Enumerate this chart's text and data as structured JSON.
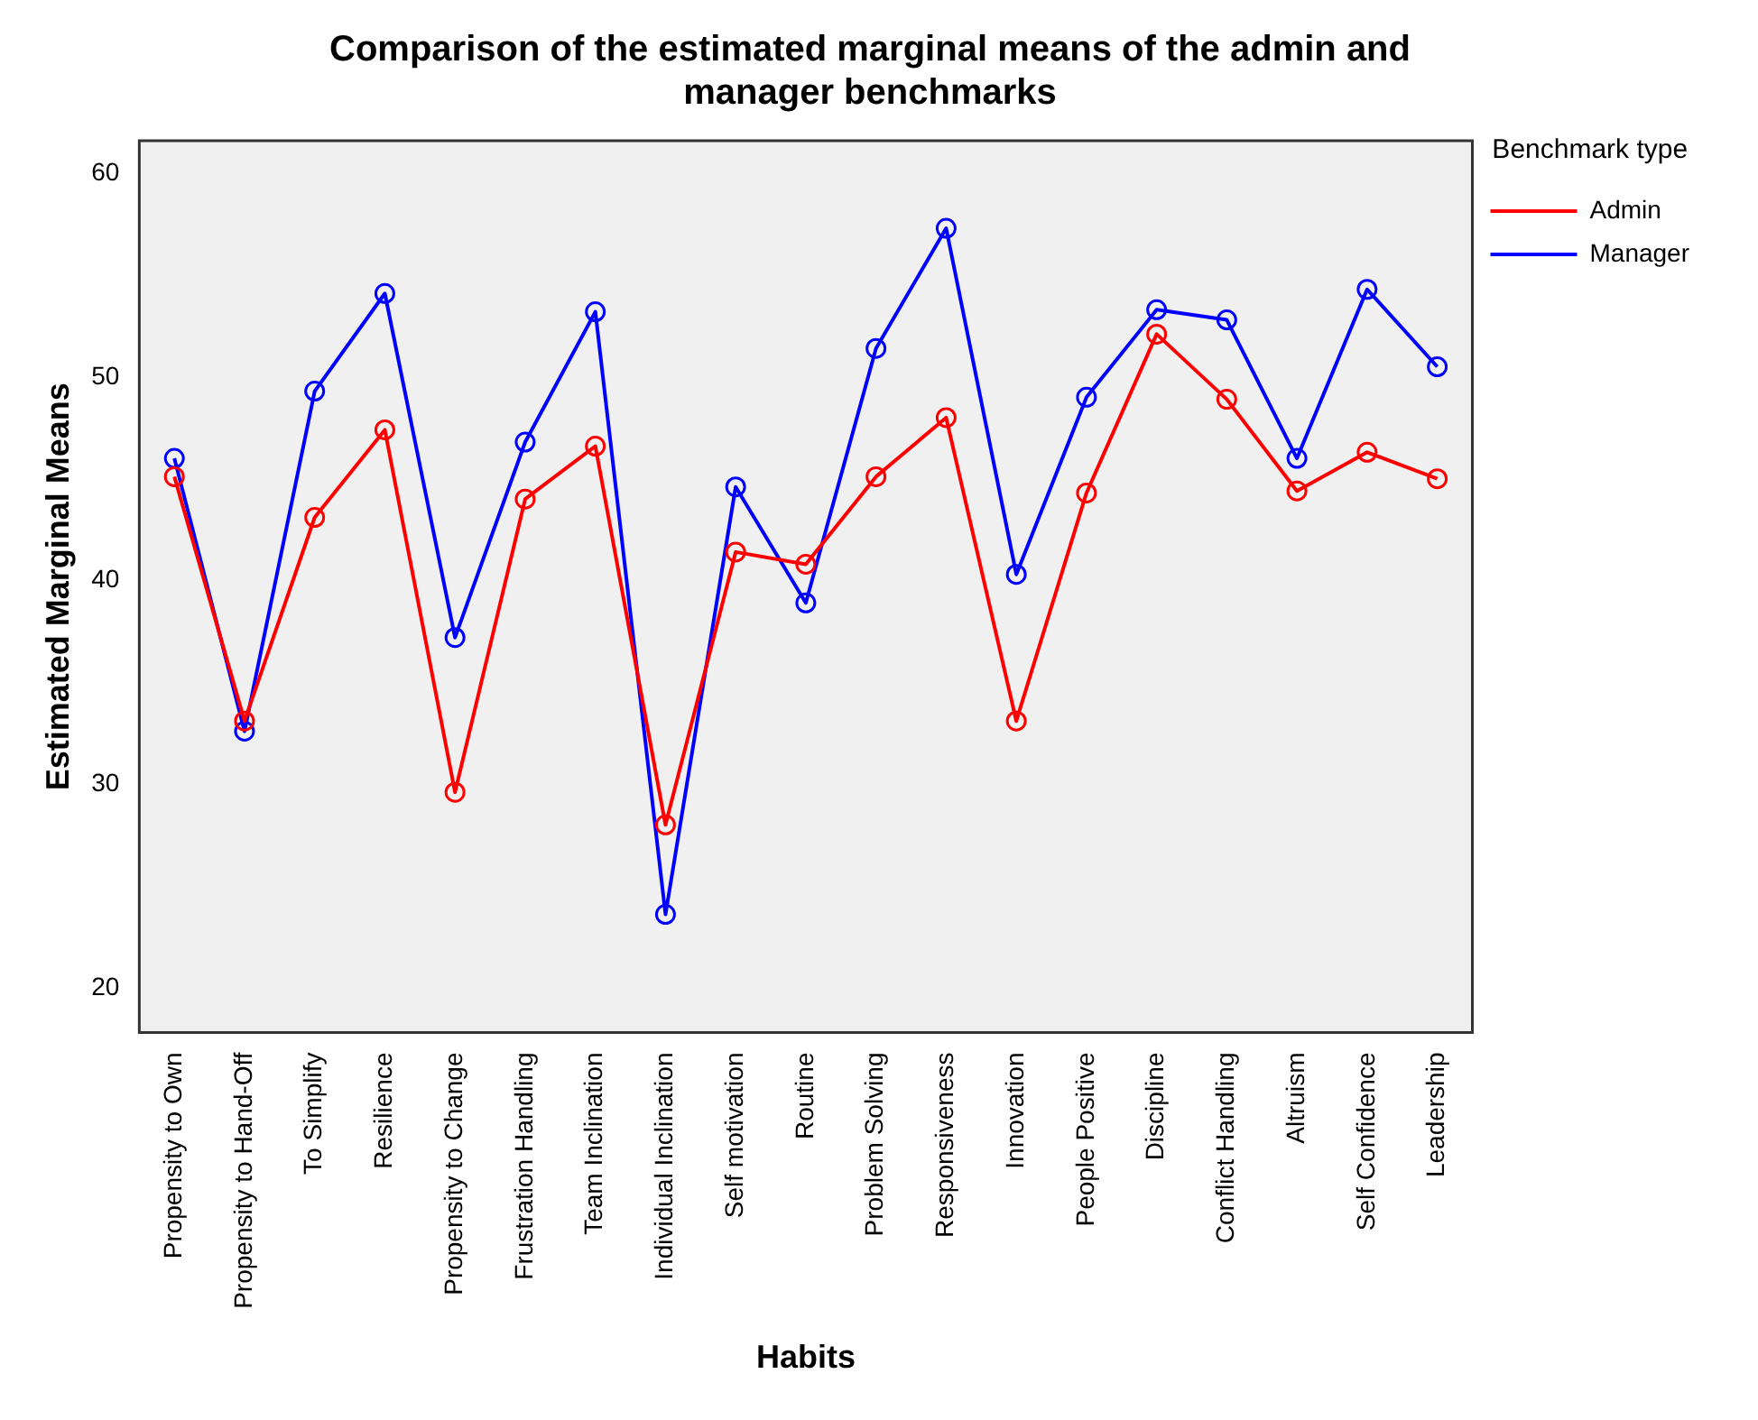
{
  "chart_data": {
    "type": "line",
    "title": "Comparison of the estimated marginal means of the admin and manager benchmarks",
    "xlabel": "Habits",
    "ylabel": "Estimated Marginal Means",
    "legend_title": "Benchmark type",
    "categories": [
      "Propensity to Own",
      "Propensity to Hand-Off",
      "To Simplify",
      "Resilience",
      "Propensity to Change",
      "Frustration Handling",
      "Team Inclination",
      "Individual Inclination",
      "Self motivation",
      "Routine",
      "Problem Solving",
      "Responsiveness",
      "Innovation",
      "People Positive",
      "Discipline",
      "Conflict Handling",
      "Altruism",
      "Self Confidence",
      "Leadership"
    ],
    "series": [
      {
        "name": "Admin",
        "color": "#ff0000",
        "values": [
          45.1,
          33.1,
          43.1,
          47.4,
          29.6,
          44.0,
          46.6,
          28.0,
          41.4,
          40.8,
          45.1,
          48.0,
          33.1,
          44.3,
          52.1,
          48.9,
          44.4,
          46.3,
          45.0
        ]
      },
      {
        "name": "Manager",
        "color": "#0000ff",
        "values": [
          46.0,
          32.6,
          49.3,
          54.1,
          37.2,
          46.8,
          53.2,
          23.6,
          44.6,
          38.9,
          51.4,
          57.3,
          40.3,
          49.0,
          53.3,
          52.8,
          46.0,
          54.3,
          50.5
        ]
      }
    ],
    "ylim": [
      17.8,
      61.6
    ],
    "yticks": [
      20,
      30,
      40,
      50,
      60
    ],
    "grid": false,
    "legend": "right",
    "marker": "circle",
    "line_style": "solid"
  }
}
